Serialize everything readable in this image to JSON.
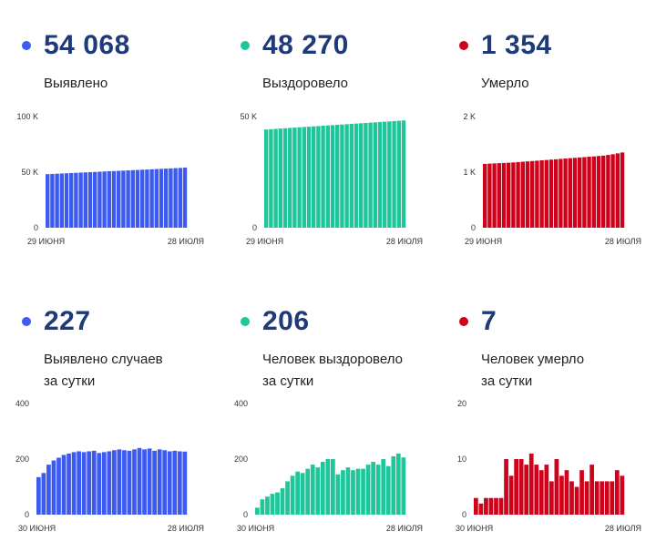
{
  "panels": [
    {
      "value": "54 068",
      "label": "Выявлено",
      "color": "#3d5af1",
      "chart_data": {
        "type": "bar",
        "y_ticks": [
          "0",
          "50 K",
          "100 K"
        ],
        "ylim": [
          0,
          100000
        ],
        "x_labels": [
          "29 июня",
          "28 июля"
        ],
        "values": [
          48200,
          48400,
          48600,
          48800,
          49000,
          49200,
          49400,
          49600,
          49800,
          50000,
          50200,
          50400,
          50600,
          50800,
          51000,
          51200,
          51400,
          51600,
          51800,
          52000,
          52200,
          52400,
          52600,
          52800,
          53000,
          53200,
          53400,
          53600,
          53800,
          54068
        ]
      }
    },
    {
      "value": "48 270",
      "label": "Выздоровело",
      "color": "#1fc69a",
      "chart_data": {
        "type": "bar",
        "y_ticks": [
          "0",
          "50 K"
        ],
        "ylim": [
          0,
          50000
        ],
        "x_labels": [
          "29 июня",
          "28 июля"
        ],
        "values": [
          44200,
          44340,
          44480,
          44620,
          44760,
          44900,
          45040,
          45180,
          45320,
          45460,
          45600,
          45740,
          45880,
          46020,
          46160,
          46300,
          46440,
          46580,
          46720,
          46860,
          47000,
          47140,
          47280,
          47420,
          47560,
          47700,
          47840,
          47980,
          48120,
          48270
        ]
      }
    },
    {
      "value": "1 354",
      "label": "Умерло",
      "color": "#d0021b",
      "chart_data": {
        "type": "bar",
        "y_ticks": [
          "0",
          "1 K",
          "2 K"
        ],
        "ylim": [
          0,
          2000
        ],
        "x_labels": [
          "29 июня",
          "28 июля"
        ],
        "values": [
          1150,
          1154,
          1158,
          1162,
          1166,
          1170,
          1175,
          1181,
          1188,
          1194,
          1200,
          1206,
          1213,
          1219,
          1226,
          1232,
          1239,
          1245,
          1252,
          1258,
          1265,
          1271,
          1278,
          1284,
          1291,
          1297,
          1310,
          1322,
          1338,
          1354
        ]
      }
    },
    {
      "value": "227",
      "label": "Выявлено случаев\nза сутки",
      "color": "#3d5af1",
      "chart_data": {
        "type": "bar",
        "y_ticks": [
          "0",
          "200",
          "400"
        ],
        "ylim": [
          0,
          400
        ],
        "x_labels": [
          "30 июня",
          "28 июля"
        ],
        "values": [
          135,
          150,
          180,
          195,
          205,
          215,
          220,
          225,
          228,
          225,
          228,
          230,
          222,
          225,
          228,
          232,
          235,
          232,
          230,
          235,
          240,
          235,
          238,
          230,
          235,
          232,
          228,
          230,
          228,
          227
        ]
      }
    },
    {
      "value": "206",
      "label": "Человек выздоровело\nза сутки",
      "color": "#1fc69a",
      "chart_data": {
        "type": "bar",
        "y_ticks": [
          "0",
          "200",
          "400"
        ],
        "ylim": [
          0,
          400
        ],
        "x_labels": [
          "30 июня",
          "28 июля"
        ],
        "values": [
          25,
          55,
          65,
          75,
          80,
          95,
          120,
          140,
          155,
          150,
          165,
          180,
          170,
          190,
          200,
          200,
          145,
          160,
          170,
          160,
          165,
          165,
          180,
          190,
          180,
          200,
          175,
          210,
          220,
          206
        ]
      }
    },
    {
      "value": "7",
      "label": "Человек умерло\nза сутки",
      "color": "#d0021b",
      "chart_data": {
        "type": "bar",
        "y_ticks": [
          "0",
          "10",
          "20"
        ],
        "ylim": [
          0,
          20
        ],
        "x_labels": [
          "30 июня",
          "28 июля"
        ],
        "values": [
          3,
          2,
          3,
          3,
          3,
          3,
          10,
          7,
          10,
          10,
          9,
          11,
          9,
          8,
          9,
          6,
          10,
          7,
          8,
          6,
          5,
          8,
          6,
          9,
          6,
          6,
          6,
          6,
          8,
          7
        ]
      }
    }
  ]
}
